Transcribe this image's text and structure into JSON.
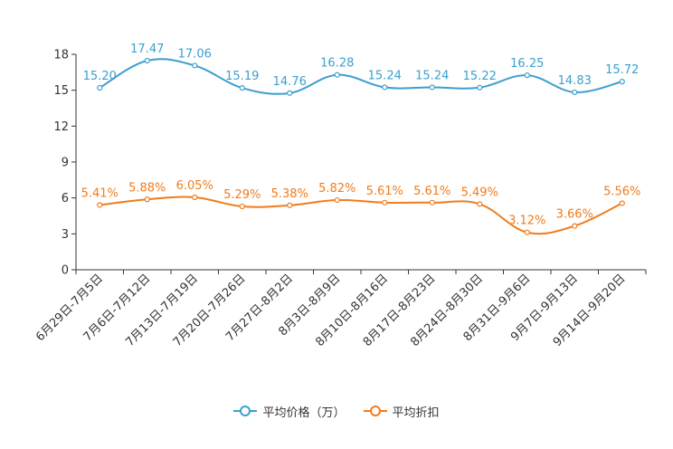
{
  "chart_data": {
    "type": "line",
    "title": "",
    "xlabel": "",
    "ylabel": "",
    "ylim": [
      0,
      18
    ],
    "yticks": [
      0,
      3,
      6,
      9,
      12,
      15,
      18
    ],
    "categories": [
      "6月29日-7月5日",
      "7月6日-7月12日",
      "7月13日-7月19日",
      "7月20日-7月26日",
      "7月27日-8月2日",
      "8月3日-8月9日",
      "8月10日-8月16日",
      "8月17日-8月23日",
      "8月24日-8月30日",
      "8月31日-9月6日",
      "9月7日-9月13日",
      "9月14日-9月20日"
    ],
    "series": [
      {
        "name": "平均价格（万）",
        "color": "#3c9fcf",
        "values": [
          15.2,
          17.47,
          17.06,
          15.19,
          14.76,
          16.28,
          15.24,
          15.24,
          15.22,
          16.25,
          14.83,
          15.72
        ],
        "labels": [
          "15.20",
          "17.47",
          "17.06",
          "15.19",
          "14.76",
          "16.28",
          "15.24",
          "15.24",
          "15.22",
          "16.25",
          "14.83",
          "15.72"
        ]
      },
      {
        "name": "平均折扣",
        "color": "#f07c1c",
        "values": [
          5.41,
          5.88,
          6.05,
          5.29,
          5.38,
          5.82,
          5.61,
          5.61,
          5.49,
          3.12,
          3.66,
          5.56
        ],
        "labels": [
          "5.41%",
          "5.88%",
          "6.05%",
          "5.29%",
          "5.38%",
          "5.82%",
          "5.61%",
          "5.61%",
          "5.49%",
          "3.12%",
          "3.66%",
          "5.56%"
        ]
      }
    ],
    "legend": {
      "position": "bottom-center"
    },
    "grid": false
  }
}
